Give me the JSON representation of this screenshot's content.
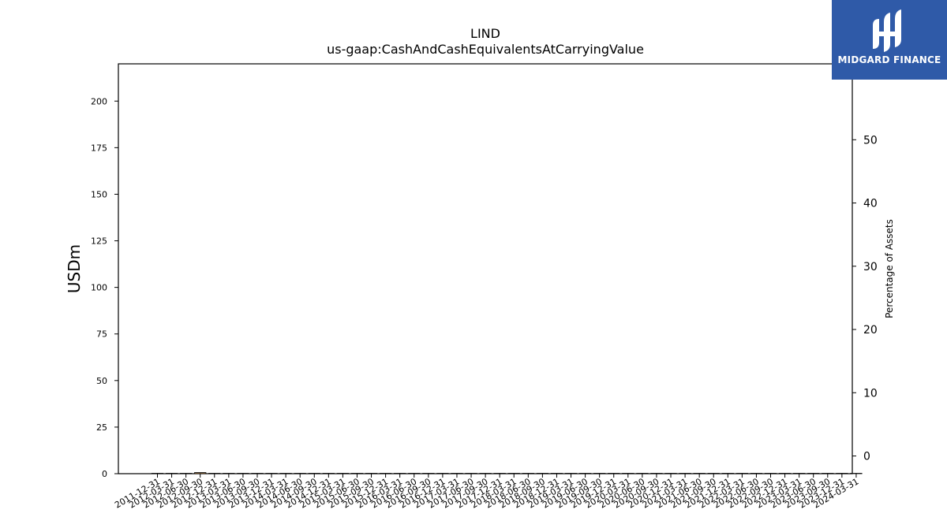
{
  "logo": {
    "text": "MIDGARD FINANCE",
    "background": "#2f5aa8"
  },
  "chart_data": {
    "type": "bar",
    "title": "LIND",
    "subtitle": "us-gaap:CashAndCashEquivalentsAtCarryingValue",
    "ylabel": "USDm",
    "y2label": "Percentage of Assets",
    "ylim": [
      0,
      220
    ],
    "y2lim": [
      -2.8,
      62
    ],
    "yticks": [
      0,
      25,
      50,
      75,
      100,
      125,
      150,
      175,
      200
    ],
    "y2ticks": [
      0,
      10,
      20,
      30,
      40,
      50
    ],
    "colors": {
      "bar": "#fdb462",
      "bar_q4": "#000000",
      "line": "#000000",
      "edge": "#000000"
    },
    "categories": [
      "2011-12-31",
      "2012-03-31",
      "2012-06-30",
      "2012-09-30",
      "2012-12-31",
      "2013-03-31",
      "2013-06-30",
      "2013-09-30",
      "2013-12-31",
      "2014-03-31",
      "2014-06-30",
      "2014-09-30",
      "2014-12-31",
      "2015-03-31",
      "2015-06-30",
      "2015-09-30",
      "2015-12-31",
      "2016-03-31",
      "2016-06-30",
      "2016-09-30",
      "2016-12-31",
      "2017-03-31",
      "2017-06-30",
      "2017-09-30",
      "2017-12-31",
      "2018-03-31",
      "2018-06-30",
      "2018-09-30",
      "2018-12-31",
      "2019-03-31",
      "2019-06-30",
      "2019-09-30",
      "2019-12-31",
      "2020-03-31",
      "2020-06-30",
      "2020-09-30",
      "2020-12-31",
      "2021-03-31",
      "2021-06-30",
      "2021-09-30",
      "2021-12-31",
      "2022-03-31",
      "2022-06-30",
      "2022-09-30",
      "2022-12-31",
      "2023-03-31",
      "2023-06-30",
      "2023-09-30",
      "2023-12-31",
      "2024-03-31"
    ],
    "tick_labels": [
      "2011-12-31",
      "2012-03-31",
      "2012-06-30",
      "2012-09-30",
      "2012-12-31",
      "2013-03-31",
      "2013-06-30",
      "2013-09-30",
      "2013-12-31",
      "2014-03-31",
      "2014-06-30",
      "2014-09-30",
      "2014-12-31",
      "2015-03-31",
      "2015-06-30",
      "2015-09-30",
      "2015-12-31",
      "2016-03-31",
      "2016-06-30",
      "2016-09-30",
      "2016-12-31",
      "2017-03-31",
      "2017-06-30",
      "2017-09-30",
      "2017-12-31",
      "2018-03-31",
      "2018-06-30",
      "2018-09-30",
      "2018-12-31",
      "2019-03-31",
      "2019-06-30",
      "2019-09-30",
      "2019-12-31",
      "2020-03-31",
      "2020-06-30",
      "2020-09-30",
      "2020-12-31",
      "2021-03-31",
      "2021-06-30",
      "2021-09-30",
      "2021-12-31",
      "2022-03-31",
      "2022-06-30",
      "2022-09-30",
      "2022-12-31",
      "2023-03-31",
      "2023-06-30",
      "2023-09-30",
      "2023-12-31",
      "2024-03-31"
    ],
    "series": [
      {
        "type": "bar",
        "values": [
          0.2,
          0.2,
          0.2,
          0.6,
          0.2,
          0.2,
          0.2,
          0.2,
          0.2,
          0.2,
          0.2,
          0.2,
          0.2,
          0.2,
          0.2,
          0.2,
          0.2,
          0.2,
          0.2,
          0.2,
          0.2,
          0.2,
          0.2,
          0.2,
          0.2,
          0.2,
          0.2,
          0.2,
          0.2,
          0.2,
          0.2,
          0.2,
          0.2,
          0.2,
          0.2,
          0.2,
          0.2,
          0.2,
          0.2,
          0.2,
          0.2,
          0.2,
          0.2,
          0.2,
          0.2,
          0.2,
          0.2,
          0.2,
          0.2,
          0.2
        ]
      },
      {
        "type": "line",
        "axis": "right",
        "values": [
          null,
          null,
          null,
          null,
          null,
          null,
          null,
          null,
          null,
          null,
          null,
          null,
          null,
          null,
          null,
          null,
          null,
          null,
          null,
          null,
          null,
          null,
          null,
          null,
          null,
          null,
          null,
          null,
          null,
          null,
          null,
          null,
          null,
          null,
          null,
          null,
          null,
          null,
          null,
          null,
          null,
          null,
          null,
          null,
          null,
          null,
          null,
          null,
          null,
          null
        ]
      }
    ]
  }
}
